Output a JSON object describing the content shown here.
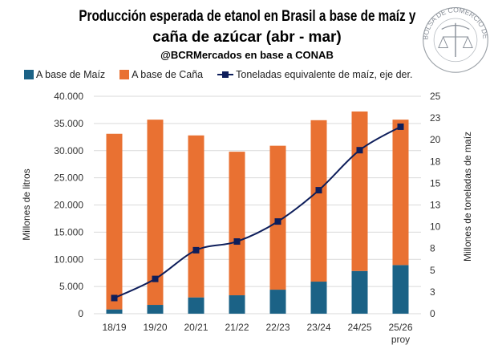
{
  "title_line1": "Producción esperada de etanol en Brasil a base de maíz y",
  "title_line2": "caña de azúcar (abr - mar)",
  "subtitle": "@BCRMercados en base a CONAB",
  "logo_text": "BOLSA DE COMERCIO DE ROSARIO",
  "chart_data": {
    "type": "bar",
    "stacked": true,
    "categories": [
      "18/19",
      "19/20",
      "20/21",
      "21/22",
      "22/23",
      "23/24",
      "24/25",
      "25/26 proy"
    ],
    "category_labels": [
      [
        "18/19"
      ],
      [
        "19/20"
      ],
      [
        "20/21"
      ],
      [
        "21/22"
      ],
      [
        "22/23"
      ],
      [
        "23/24"
      ],
      [
        "24/25"
      ],
      [
        "25/26",
        "proy"
      ]
    ],
    "series": [
      {
        "name": "A base de Maíz",
        "type": "bar",
        "axis": "left",
        "color": "#1b6286",
        "values": [
          790,
          1620,
          3000,
          3390,
          4420,
          5900,
          7860,
          8950
        ]
      },
      {
        "name": "A base de Caña",
        "type": "bar",
        "axis": "left",
        "color": "#e97132",
        "values": [
          32310,
          34080,
          29800,
          26410,
          26480,
          29700,
          29340,
          26750
        ]
      },
      {
        "name": "Toneladas equivalente de maíz, eje der.",
        "type": "line",
        "axis": "right",
        "color": "#0e1e5b",
        "marker": "square",
        "values": [
          1.8,
          4.0,
          7.3,
          8.3,
          10.6,
          14.2,
          18.8,
          21.5
        ]
      }
    ],
    "ylabel": "Millones de litros",
    "ylim": [
      0,
      40000
    ],
    "yticks": [
      "0",
      "5.000",
      "10.000",
      "15.000",
      "20.000",
      "25.000",
      "30.000",
      "35.000",
      "40.000"
    ],
    "y2label": "Millones de toneladas de maíz",
    "y2lim": [
      0,
      25
    ],
    "y2ticks": [
      "0",
      "3",
      "5",
      "8",
      "10",
      "13",
      "15",
      "18",
      "20",
      "23",
      "25"
    ],
    "grid": true,
    "legend": "top"
  }
}
